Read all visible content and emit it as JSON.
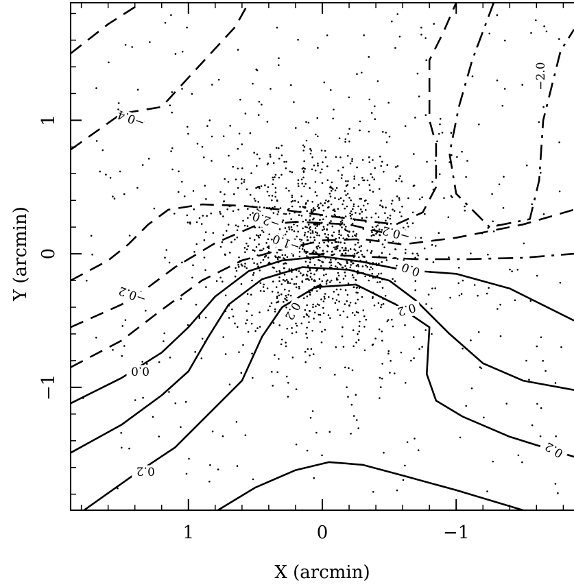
{
  "chart_data": {
    "type": "scatter",
    "title": "",
    "xlabel": "X (arcmin)",
    "ylabel": "Y (arcmin)",
    "xlim": [
      1.88,
      -1.88
    ],
    "ylim": [
      -1.92,
      1.88
    ],
    "x_inverted": true,
    "grid": false,
    "x_ticks": [
      1,
      0,
      -1
    ],
    "x_tick_labels": [
      "1",
      "0",
      "−1"
    ],
    "y_ticks": [
      1,
      0,
      -1
    ],
    "y_tick_labels": [
      "1",
      "0",
      "−1"
    ],
    "point_count_estimate": 1500,
    "scatter_description": "galaxy positions concentrated around origin",
    "contour_levels": [
      {
        "label": "0.2",
        "style": "solid"
      },
      {
        "label": "0.0",
        "style": "solid"
      },
      {
        "label": "−0.2",
        "style": "dashed"
      },
      {
        "label": "−0.4",
        "style": "dashed"
      },
      {
        "label": "−2.0",
        "style": "dash-dot"
      }
    ],
    "contour_labels_rendered": [
      {
        "text": "0.0",
        "x": 1.36,
        "y": -0.88,
        "rot": 180
      },
      {
        "text": "0.2",
        "x": 1.32,
        "y": -1.63,
        "rot": 180
      },
      {
        "text": "0.2",
        "x": -0.63,
        "y": -0.42,
        "rot": 165
      },
      {
        "text": "0.2",
        "x": -1.73,
        "y": -1.47,
        "rot": 210
      },
      {
        "text": "0.0",
        "x": -0.66,
        "y": -0.12,
        "rot": 200
      },
      {
        "text": "0.2",
        "x": 0.22,
        "y": -0.43,
        "rot": 120
      },
      {
        "text": "−0.2",
        "x": 1.42,
        "y": -0.31,
        "rot": 200
      },
      {
        "text": "−0.2",
        "x": -0.55,
        "y": 0.15,
        "rot": 195
      },
      {
        "text": "−0.4",
        "x": 1.43,
        "y": 1.01,
        "rot": 200
      },
      {
        "text": "−1.0",
        "x": 0.27,
        "y": 0.08,
        "rot": 200
      },
      {
        "text": "−2.0",
        "x": 0.42,
        "y": 0.25,
        "rot": 200
      },
      {
        "text": "−2.0",
        "x": -1.63,
        "y": 1.33,
        "rot": -90
      }
    ],
    "contours": [
      {
        "style": "solid",
        "points": [
          [
            1.88,
            -1.12
          ],
          [
            1.5,
            -0.93
          ],
          [
            1.2,
            -0.74
          ],
          [
            1.0,
            -0.55
          ],
          [
            0.8,
            -0.32
          ],
          [
            0.55,
            -0.13
          ],
          [
            0.3,
            -0.05
          ],
          [
            0.0,
            -0.02
          ],
          [
            -0.3,
            -0.06
          ],
          [
            -0.6,
            -0.12
          ],
          [
            -1.0,
            -0.15
          ],
          [
            -1.4,
            -0.26
          ],
          [
            -1.88,
            -0.5
          ]
        ]
      },
      {
        "style": "solid",
        "points": [
          [
            1.88,
            -1.49
          ],
          [
            1.5,
            -1.28
          ],
          [
            1.2,
            -1.06
          ],
          [
            1.0,
            -0.88
          ],
          [
            0.85,
            -0.62
          ],
          [
            0.7,
            -0.38
          ],
          [
            0.45,
            -0.19
          ],
          [
            0.15,
            -0.1
          ],
          [
            -0.2,
            -0.12
          ],
          [
            -0.5,
            -0.2
          ],
          [
            -0.7,
            -0.35
          ],
          [
            -0.95,
            -0.6
          ],
          [
            -1.2,
            -0.82
          ],
          [
            -1.5,
            -0.95
          ],
          [
            -1.88,
            -1.02
          ]
        ]
      },
      {
        "style": "solid",
        "points": [
          [
            1.78,
            -1.92
          ],
          [
            1.4,
            -1.65
          ],
          [
            1.1,
            -1.45
          ],
          [
            0.85,
            -1.2
          ],
          [
            0.6,
            -0.95
          ],
          [
            0.45,
            -0.62
          ],
          [
            0.3,
            -0.4
          ],
          [
            0.05,
            -0.25
          ],
          [
            -0.25,
            -0.23
          ],
          [
            -0.55,
            -0.38
          ],
          [
            -0.8,
            -0.55
          ],
          [
            -0.78,
            -0.9
          ],
          [
            -0.85,
            -1.1
          ],
          [
            -1.05,
            -1.22
          ],
          [
            -1.4,
            -1.37
          ],
          [
            -1.88,
            -1.52
          ]
        ]
      },
      {
        "style": "solid",
        "points": [
          [
            0.78,
            -1.92
          ],
          [
            0.5,
            -1.75
          ],
          [
            0.2,
            -1.62
          ],
          [
            -0.05,
            -1.56
          ],
          [
            -0.3,
            -1.58
          ],
          [
            -0.6,
            -1.66
          ],
          [
            -1.0,
            -1.77
          ],
          [
            -1.5,
            -1.92
          ]
        ]
      },
      {
        "style": "dashed",
        "points": [
          [
            1.88,
            -0.85
          ],
          [
            1.5,
            -0.65
          ],
          [
            1.2,
            -0.42
          ],
          [
            0.9,
            -0.2
          ],
          [
            0.6,
            -0.05
          ],
          [
            0.35,
            0.02
          ],
          [
            0.0,
            0.1
          ],
          [
            -0.3,
            0.11
          ],
          [
            -0.6,
            0.07
          ],
          [
            -1.0,
            0.12
          ],
          [
            -1.5,
            0.22
          ],
          [
            -1.88,
            0.33
          ]
        ]
      },
      {
        "style": "dashed",
        "points": [
          [
            1.88,
            -0.55
          ],
          [
            1.5,
            -0.38
          ],
          [
            1.3,
            -0.25
          ],
          [
            1.1,
            -0.1
          ],
          [
            0.8,
            0.08
          ],
          [
            0.5,
            0.21
          ],
          [
            0.2,
            0.24
          ],
          [
            -0.2,
            0.22
          ],
          [
            -0.45,
            0.16
          ],
          [
            -0.7,
            0.12
          ]
        ]
      },
      {
        "style": "dashed",
        "points": [
          [
            1.88,
            -0.2
          ],
          [
            1.6,
            -0.05
          ],
          [
            1.45,
            0.07
          ],
          [
            1.3,
            0.22
          ],
          [
            1.15,
            0.33
          ],
          [
            0.9,
            0.37
          ],
          [
            0.6,
            0.36
          ],
          [
            0.3,
            0.33
          ],
          [
            0.0,
            0.29
          ],
          [
            -0.3,
            0.25
          ],
          [
            -0.55,
            0.22
          ],
          [
            -0.75,
            0.31
          ],
          [
            -0.85,
            0.5
          ],
          [
            -0.85,
            0.82
          ],
          [
            -0.8,
            1.0
          ],
          [
            -0.8,
            1.45
          ],
          [
            -0.9,
            1.65
          ],
          [
            -1.0,
            1.88
          ]
        ]
      },
      {
        "style": "dashed",
        "points": [
          [
            1.88,
            0.78
          ],
          [
            1.5,
            1.05
          ],
          [
            1.2,
            1.1
          ],
          [
            1.0,
            1.32
          ],
          [
            0.65,
            1.7
          ],
          [
            0.55,
            1.88
          ]
        ]
      },
      {
        "style": "dashed",
        "points": [
          [
            1.88,
            1.5
          ],
          [
            1.6,
            1.72
          ],
          [
            1.35,
            1.88
          ]
        ]
      },
      {
        "style": "dash-dot",
        "points": [
          [
            0.1,
            0.0
          ],
          [
            -0.3,
            -0.02
          ],
          [
            -0.7,
            -0.04
          ],
          [
            -1.1,
            -0.04
          ],
          [
            -1.5,
            -0.03
          ],
          [
            -1.88,
            0.0
          ]
        ]
      },
      {
        "style": "dash-dot",
        "points": [
          [
            -1.28,
            1.88
          ],
          [
            -1.12,
            1.45
          ],
          [
            -1.02,
            1.1
          ],
          [
            -0.95,
            0.75
          ],
          [
            -1.0,
            0.45
          ],
          [
            -1.25,
            0.2
          ],
          [
            -1.55,
            0.26
          ],
          [
            -1.62,
            0.55
          ],
          [
            -1.65,
            1.0
          ],
          [
            -1.78,
            1.52
          ],
          [
            -1.88,
            1.68
          ]
        ]
      }
    ]
  }
}
